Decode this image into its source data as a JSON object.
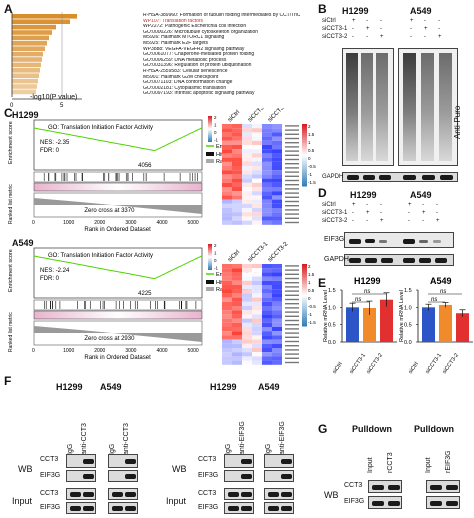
{
  "panel_labels": {
    "a": "A",
    "b": "B",
    "c": "C",
    "d": "D",
    "e": "E",
    "f": "F",
    "g": "G"
  },
  "panel_a": {
    "terms": [
      "R-HSA-389960: Formation of tubulin folding intermediates by CCT/TriC",
      "WP107: Translation factors",
      "WP2272: Pathogenic Escherichia coli infection",
      "GO:0000226: Microtubule cytoskeleton organization",
      "M5926: Hallmark MTORC1 signaling",
      "M5925: Hallmark E2F targets",
      "WP3888: VEGFA-VEGFR2 signaling pathway",
      "GO:0061077: Chaperone-mediated protein folding",
      "GO:0006259: DNA metabolic process",
      "GO:0031396: Regulation of protein ubiquitination",
      "R-HSA-2559583: Cellular senescence",
      "M5901: Hallmark G2M checkpoint",
      "GO:0071103: DNA conformation change",
      "GO:0002181: Cytoplasmic translation",
      "GO:0097193: Intrinsic apoptotic signaling pathway"
    ],
    "highlight_term_color": "#cc2a2a",
    "values": [
      6.5,
      5.8,
      4.4,
      4.0,
      3.7,
      3.5,
      3.3,
      3.1,
      3.0,
      2.9,
      2.8,
      2.7,
      2.6,
      2.5,
      2.4
    ],
    "xlabel": "-log10(P value)",
    "ticks": [
      "0",
      "5"
    ],
    "bar_color": "#d98e2c"
  },
  "panel_b": {
    "h1299": "H1299",
    "a549": "A549",
    "rows": [
      "siCtrl",
      "siCCT3-1",
      "siCCT3-2"
    ],
    "signs": [
      [
        "+",
        "-",
        "-"
      ],
      [
        "-",
        "+",
        "-"
      ],
      [
        "-",
        "-",
        "+"
      ]
    ],
    "blot_label": "Anti-Puro",
    "loading": "GAPDH"
  },
  "panel_c": {
    "h1299": "H1299",
    "a549": "A549",
    "go_title": "GO: Translation Initiation Factor Activity",
    "nes1": "NES: -2.35",
    "fdr1": "FDR: 0",
    "peak1": "4056",
    "zero1": "Zero cross at 3370",
    "nes2": "NES: -2.24",
    "fdr2": "FDR: 0",
    "peak2": "4225",
    "zero2": "Zero cross at 2930",
    "es_label": "Enrichment score",
    "rank_label": "Ranked list metric",
    "xlabel": "Rank in Ordered Dataset",
    "xticks": [
      "0",
      "1000",
      "2000",
      "3000",
      "4000",
      "5000"
    ],
    "legend": [
      "Enrichment Profile",
      "Hits",
      "Ranking metric scores"
    ],
    "corr": "siCtrl (positively correlated)",
    "heat_cols": [
      "siCtrl",
      "siCCT3-1",
      "siCCT3-2"
    ],
    "scale_ticks": [
      "2",
      "1.5",
      "1",
      "0.5",
      "0",
      "-0.5",
      "-1",
      "-1.5"
    ]
  },
  "panel_d": {
    "h1299": "H1299",
    "a549": "A549",
    "rows": [
      "siCtrl",
      "siCCT3-1",
      "siCCT3-2"
    ],
    "signs": [
      [
        "+",
        "-",
        "-"
      ],
      [
        "-",
        "+",
        "-"
      ],
      [
        "-",
        "-",
        "+"
      ]
    ],
    "bands": [
      "EIF3G",
      "GAPDH"
    ]
  },
  "panel_e": {
    "chart_data": [
      {
        "type": "bar",
        "title": "H1299",
        "categories": [
          "siCtrl",
          "siCCT3-1",
          "siCCT3-2"
        ],
        "values": [
          1.0,
          0.98,
          1.22
        ],
        "errors": [
          0.12,
          0.2,
          0.2
        ],
        "ylabel": "Relative mRNA Level",
        "ylim": [
          0,
          1.5
        ],
        "yticks": [
          "0.0",
          "0.5",
          "1.0",
          "1.5"
        ],
        "annotations": [
          "ns",
          "ns"
        ],
        "colors": [
          "#2c55c8",
          "#f08a2a",
          "#e23030"
        ]
      },
      {
        "type": "bar",
        "title": "A549",
        "categories": [
          "siCtrl",
          "siCCT3-1",
          "siCCT3-2"
        ],
        "values": [
          1.0,
          1.07,
          0.83
        ],
        "errors": [
          0.09,
          0.07,
          0.1
        ],
        "ylabel": "Relative mRNA Level",
        "ylim": [
          0,
          1.5
        ],
        "yticks": [
          "0.0",
          "0.5",
          "1.0",
          "1.5"
        ],
        "annotations": [
          "ns",
          "ns"
        ],
        "colors": [
          "#2c55c8",
          "#f08a2a",
          "#e23030"
        ]
      }
    ]
  },
  "panel_f": {
    "left": {
      "h1299": "H1299",
      "a549": "A549",
      "cols": [
        "IgG",
        "anti-CCT3",
        "IgG",
        "anti-CCT3"
      ]
    },
    "right": {
      "h1299": "H1299",
      "a549": "A549",
      "cols": [
        "IgG",
        "anti-EIF3G",
        "IgG",
        "anti-EIF3G"
      ]
    },
    "wb": "WB",
    "input": "Input",
    "cct3": "CCT3",
    "eif3g": "EIF3G"
  },
  "panel_g": {
    "pulldown": "Pulldown",
    "cols": [
      "Input",
      "rCCT3",
      "Input",
      "rEIF3G"
    ],
    "wb": "WB",
    "cct3": "CCT3",
    "eif3g": "EIF3G"
  }
}
